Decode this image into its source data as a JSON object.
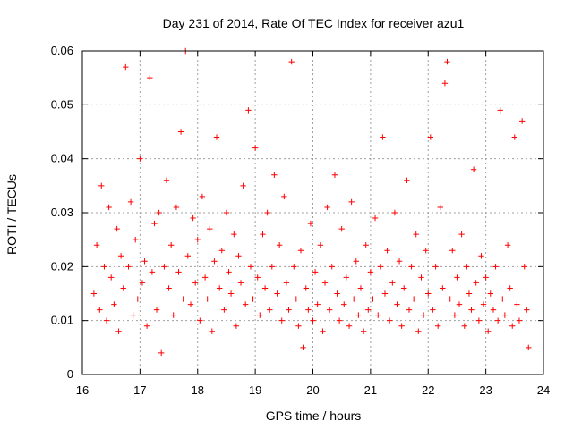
{
  "chart_data": {
    "type": "scatter",
    "title": "Day 231 of 2014, Rate Of TEC Index for receiver azu1",
    "xlabel": "GPS time / hours",
    "ylabel": "ROTI / TECUs",
    "xlim": [
      16,
      24
    ],
    "ylim": [
      0,
      0.06
    ],
    "xticks": [
      16,
      17,
      18,
      19,
      20,
      21,
      22,
      23,
      24
    ],
    "yticks": [
      0,
      0.01,
      0.02,
      0.03,
      0.04,
      0.05,
      0.06
    ],
    "xtick_labels": [
      "16",
      "17",
      "18",
      "19",
      "20",
      "21",
      "22",
      "23",
      "24"
    ],
    "ytick_labels": [
      "0",
      "0.01",
      "0.02",
      "0.03",
      "0.04",
      "0.05",
      "0.06"
    ],
    "grid": true,
    "marker": "+",
    "color": "#ff0000",
    "series": [
      {
        "name": "ROTI",
        "x_start": 16.15,
        "x_end": 23.75,
        "points": [
          [
            16.2,
            0.015
          ],
          [
            16.25,
            0.024
          ],
          [
            16.3,
            0.012
          ],
          [
            16.33,
            0.035
          ],
          [
            16.38,
            0.02
          ],
          [
            16.42,
            0.01
          ],
          [
            16.46,
            0.031
          ],
          [
            16.5,
            0.018
          ],
          [
            16.55,
            0.013
          ],
          [
            16.6,
            0.027
          ],
          [
            16.63,
            0.008
          ],
          [
            16.67,
            0.022
          ],
          [
            16.71,
            0.016
          ],
          [
            16.75,
            0.057
          ],
          [
            16.8,
            0.02
          ],
          [
            16.84,
            0.032
          ],
          [
            16.88,
            0.011
          ],
          [
            16.92,
            0.025
          ],
          [
            16.96,
            0.014
          ],
          [
            17.0,
            0.04
          ],
          [
            17.04,
            0.017
          ],
          [
            17.08,
            0.021
          ],
          [
            17.12,
            0.009
          ],
          [
            17.17,
            0.055
          ],
          [
            17.21,
            0.019
          ],
          [
            17.25,
            0.028
          ],
          [
            17.29,
            0.012
          ],
          [
            17.33,
            0.03
          ],
          [
            17.37,
            0.004
          ],
          [
            17.42,
            0.02
          ],
          [
            17.46,
            0.036
          ],
          [
            17.5,
            0.016
          ],
          [
            17.54,
            0.024
          ],
          [
            17.58,
            0.011
          ],
          [
            17.63,
            0.031
          ],
          [
            17.67,
            0.019
          ],
          [
            17.71,
            0.045
          ],
          [
            17.75,
            0.014
          ],
          [
            17.79,
            0.06
          ],
          [
            17.83,
            0.022
          ],
          [
            17.88,
            0.013
          ],
          [
            17.92,
            0.029
          ],
          [
            17.96,
            0.017
          ],
          [
            18.0,
            0.025
          ],
          [
            18.04,
            0.01
          ],
          [
            18.08,
            0.033
          ],
          [
            18.13,
            0.018
          ],
          [
            18.17,
            0.014
          ],
          [
            18.21,
            0.027
          ],
          [
            18.25,
            0.008
          ],
          [
            18.29,
            0.021
          ],
          [
            18.33,
            0.044
          ],
          [
            18.38,
            0.016
          ],
          [
            18.42,
            0.023
          ],
          [
            18.46,
            0.012
          ],
          [
            18.5,
            0.03
          ],
          [
            18.54,
            0.019
          ],
          [
            18.58,
            0.015
          ],
          [
            18.63,
            0.026
          ],
          [
            18.67,
            0.009
          ],
          [
            18.71,
            0.022
          ],
          [
            18.75,
            0.017
          ],
          [
            18.79,
            0.035
          ],
          [
            18.83,
            0.013
          ],
          [
            18.88,
            0.049
          ],
          [
            18.92,
            0.02
          ],
          [
            18.96,
            0.014
          ],
          [
            19.0,
            0.042
          ],
          [
            19.04,
            0.018
          ],
          [
            19.08,
            0.011
          ],
          [
            19.13,
            0.026
          ],
          [
            19.17,
            0.016
          ],
          [
            19.21,
            0.03
          ],
          [
            19.25,
            0.012
          ],
          [
            19.29,
            0.02
          ],
          [
            19.33,
            0.037
          ],
          [
            19.38,
            0.015
          ],
          [
            19.42,
            0.024
          ],
          [
            19.46,
            0.01
          ],
          [
            19.5,
            0.033
          ],
          [
            19.54,
            0.017
          ],
          [
            19.58,
            0.012
          ],
          [
            19.63,
            0.058
          ],
          [
            19.67,
            0.02
          ],
          [
            19.71,
            0.014
          ],
          [
            19.75,
            0.009
          ],
          [
            19.79,
            0.023
          ],
          [
            19.83,
            0.005
          ],
          [
            19.88,
            0.016
          ],
          [
            19.92,
            0.012
          ],
          [
            19.96,
            0.028
          ],
          [
            20.0,
            0.01
          ],
          [
            20.04,
            0.019
          ],
          [
            20.08,
            0.013
          ],
          [
            20.13,
            0.024
          ],
          [
            20.17,
            0.008
          ],
          [
            20.21,
            0.017
          ],
          [
            20.25,
            0.031
          ],
          [
            20.29,
            0.012
          ],
          [
            20.33,
            0.02
          ],
          [
            20.38,
            0.037
          ],
          [
            20.42,
            0.015
          ],
          [
            20.46,
            0.01
          ],
          [
            20.5,
            0.027
          ],
          [
            20.54,
            0.013
          ],
          [
            20.58,
            0.018
          ],
          [
            20.63,
            0.009
          ],
          [
            20.67,
            0.032
          ],
          [
            20.71,
            0.014
          ],
          [
            20.75,
            0.021
          ],
          [
            20.79,
            0.011
          ],
          [
            20.83,
            0.016
          ],
          [
            20.88,
            0.008
          ],
          [
            20.92,
            0.024
          ],
          [
            20.96,
            0.012
          ],
          [
            21.0,
            0.019
          ],
          [
            21.04,
            0.014
          ],
          [
            21.08,
            0.029
          ],
          [
            21.13,
            0.011
          ],
          [
            21.17,
            0.02
          ],
          [
            21.21,
            0.044
          ],
          [
            21.25,
            0.015
          ],
          [
            21.29,
            0.023
          ],
          [
            21.33,
            0.01
          ],
          [
            21.38,
            0.017
          ],
          [
            21.42,
            0.03
          ],
          [
            21.46,
            0.013
          ],
          [
            21.5,
            0.021
          ],
          [
            21.54,
            0.009
          ],
          [
            21.58,
            0.016
          ],
          [
            21.63,
            0.036
          ],
          [
            21.67,
            0.012
          ],
          [
            21.71,
            0.02
          ],
          [
            21.75,
            0.014
          ],
          [
            21.79,
            0.026
          ],
          [
            21.83,
            0.008
          ],
          [
            21.88,
            0.018
          ],
          [
            21.92,
            0.011
          ],
          [
            21.96,
            0.023
          ],
          [
            22.0,
            0.015
          ],
          [
            22.04,
            0.044
          ],
          [
            22.08,
            0.012
          ],
          [
            22.13,
            0.02
          ],
          [
            22.17,
            0.009
          ],
          [
            22.21,
            0.031
          ],
          [
            22.25,
            0.016
          ],
          [
            22.29,
            0.054
          ],
          [
            22.33,
            0.058
          ],
          [
            22.38,
            0.014
          ],
          [
            22.42,
            0.023
          ],
          [
            22.46,
            0.011
          ],
          [
            22.5,
            0.018
          ],
          [
            22.54,
            0.013
          ],
          [
            22.58,
            0.026
          ],
          [
            22.63,
            0.009
          ],
          [
            22.67,
            0.02
          ],
          [
            22.71,
            0.015
          ],
          [
            22.75,
            0.012
          ],
          [
            22.79,
            0.038
          ],
          [
            22.83,
            0.017
          ],
          [
            22.88,
            0.01
          ],
          [
            22.92,
            0.022
          ],
          [
            22.96,
            0.013
          ],
          [
            23.0,
            0.018
          ],
          [
            23.04,
            0.008
          ],
          [
            23.08,
            0.015
          ],
          [
            23.13,
            0.012
          ],
          [
            23.17,
            0.02
          ],
          [
            23.21,
            0.01
          ],
          [
            23.25,
            0.049
          ],
          [
            23.29,
            0.014
          ],
          [
            23.33,
            0.011
          ],
          [
            23.38,
            0.024
          ],
          [
            23.42,
            0.016
          ],
          [
            23.46,
            0.009
          ],
          [
            23.5,
            0.044
          ],
          [
            23.54,
            0.013
          ],
          [
            23.58,
            0.01
          ],
          [
            23.63,
            0.047
          ],
          [
            23.67,
            0.02
          ],
          [
            23.71,
            0.012
          ],
          [
            23.74,
            0.005
          ]
        ]
      }
    ]
  }
}
